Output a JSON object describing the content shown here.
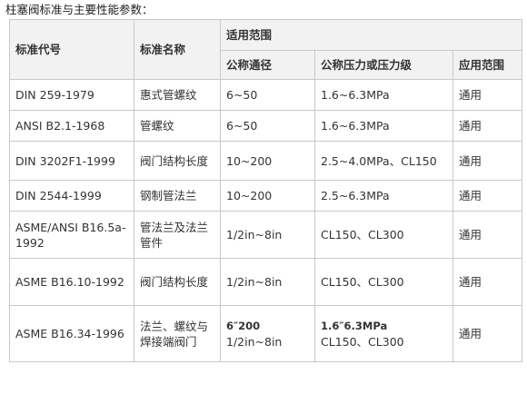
{
  "caption": "柱塞阀标准与主要性能参数：",
  "headers": {
    "code": "标准代号",
    "name": "标准名称",
    "scope": "适用范围",
    "nominal_size": "公称通径",
    "pressure": "公称压力或压力级",
    "application": "应用范围"
  },
  "rows": [
    {
      "code": "DIN 259-1979",
      "name": "惠式管螺纹",
      "size": "6~50",
      "pressure": "1.6~6.3MPa",
      "application": "通用"
    },
    {
      "code": "ANSI B2.1-1968",
      "name": "管螺纹",
      "size": "6~50",
      "pressure": "1.6~6.3MPa",
      "application": "通用"
    },
    {
      "code": "DIN 3202F1-1999",
      "name": "阀门结构长度",
      "size": "10~200",
      "pressure": "2.5~4.0MPa、CL150",
      "application": "通用"
    },
    {
      "code": "DIN 2544-1999",
      "name": "钢制管法兰",
      "size": "10~200",
      "pressure": "2.5~6.3MPa",
      "application": "通用"
    },
    {
      "code": "ASME/ANSI B16.5a-1992",
      "name": "管法兰及法兰管件",
      "size": "1/2in~8in",
      "pressure": "CL150、CL300",
      "application": "通用"
    },
    {
      "code": "ASME B16.10-1992",
      "name": "阀门结构长度",
      "size": "1/2in~8in",
      "pressure": "CL150、CL300",
      "application": "通用"
    },
    {
      "code": "ASME B16.34-1996",
      "name": "法兰、螺纹与焊接端阀门",
      "size_line1": "6″200",
      "size_line2": "1/2in~8in",
      "pressure_line1": "1.6″6.3MPa",
      "pressure_line2": "CL150、CL300",
      "application": "通用"
    }
  ]
}
